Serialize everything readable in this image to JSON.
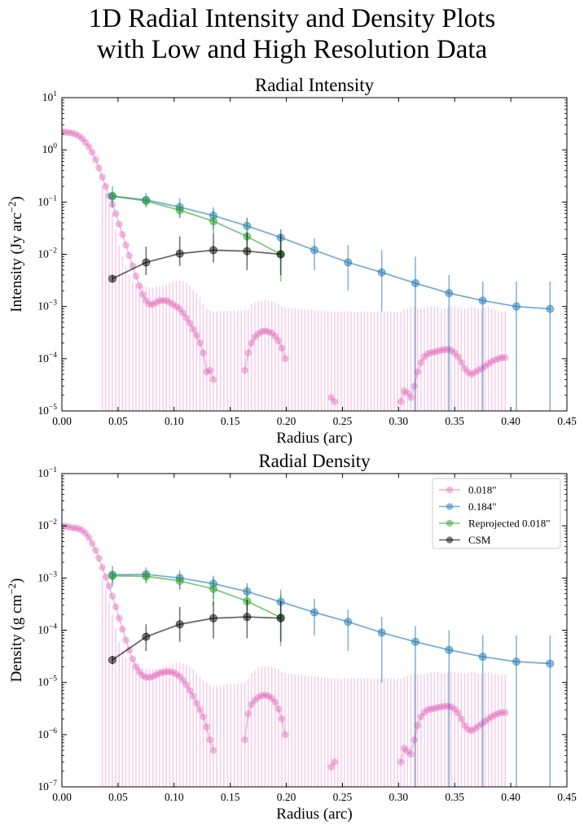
{
  "figure": {
    "title_line1": "1D Radial Intensity and Density Plots",
    "title_line2": "with Low and High Resolution Data"
  },
  "chart_data": [
    {
      "type": "line",
      "title": "Radial Intensity",
      "xlabel": "Radius (arc)",
      "ylabel": "Intensity (Jy arc",
      "ylabel_sup": "−2",
      "ylabel_end": ")",
      "xlim": [
        0,
        0.45
      ],
      "ylim": [
        1e-05,
        10
      ],
      "yscale": "log",
      "xticks": [
        "0.00",
        "0.05",
        "0.10",
        "0.15",
        "0.20",
        "0.25",
        "0.30",
        "0.35",
        "0.40",
        "0.45"
      ],
      "yticks_exp": [
        "−5",
        "−4",
        "−3",
        "−2",
        "−1",
        "0",
        "1"
      ],
      "legend": false,
      "series": [
        {
          "name": "0.018\"",
          "color": "#e377c2",
          "x": [
            0.0,
            0.003,
            0.006,
            0.009,
            0.012,
            0.015,
            0.018,
            0.021,
            0.024,
            0.027,
            0.03,
            0.033,
            0.036,
            0.039,
            0.042,
            0.045,
            0.048,
            0.051,
            0.054,
            0.057,
            0.06,
            0.063,
            0.066,
            0.069,
            0.072,
            0.075,
            0.078,
            0.081,
            0.084,
            0.087,
            0.09,
            0.093,
            0.096,
            0.099,
            0.102,
            0.105,
            0.108,
            0.111,
            0.114,
            0.117,
            0.12,
            0.123,
            0.126,
            0.129,
            0.132,
            0.135,
            0.163,
            0.166,
            0.169,
            0.172,
            0.175,
            0.178,
            0.181,
            0.184,
            0.187,
            0.19,
            0.193,
            0.196,
            0.199,
            0.24,
            0.243,
            0.302,
            0.305,
            0.308,
            0.311,
            0.314,
            0.317,
            0.32,
            0.323,
            0.326,
            0.329,
            0.332,
            0.335,
            0.338,
            0.341,
            0.344,
            0.347,
            0.35,
            0.353,
            0.356,
            0.359,
            0.362,
            0.365,
            0.368,
            0.371,
            0.374,
            0.377,
            0.38,
            0.383,
            0.386,
            0.389,
            0.392,
            0.395
          ],
          "y": [
            2.2,
            2.2,
            2.15,
            2.1,
            2.0,
            1.85,
            1.65,
            1.4,
            1.15,
            0.9,
            0.65,
            0.45,
            0.3,
            0.2,
            0.13,
            0.09,
            0.06,
            0.038,
            0.024,
            0.015,
            0.0095,
            0.006,
            0.0038,
            0.0025,
            0.0017,
            0.0013,
            0.0011,
            0.0011,
            0.0012,
            0.0013,
            0.0013,
            0.0013,
            0.0012,
            0.0011,
            0.001,
            0.0009,
            0.00075,
            0.0006,
            0.00048,
            0.00037,
            0.00028,
            0.0002,
            0.00013,
            5.6e-05,
            6e-05,
            4e-05,
            6e-05,
            0.00013,
            0.0002,
            0.00026,
            0.0003,
            0.00033,
            0.00034,
            0.00033,
            0.00031,
            0.00027,
            0.00022,
            0.00016,
            0.0001,
            1.8e-05,
            1.5e-05,
            1.5e-05,
            2.4e-05,
            2.2e-05,
            1.8e-05,
            3e-05,
            5.6e-05,
            8.5e-05,
            0.00011,
            0.000125,
            0.00013,
            0.000135,
            0.00014,
            0.000145,
            0.00015,
            0.00015,
            0.000145,
            0.00013,
            0.00011,
            8.5e-05,
            6.5e-05,
            5.5e-05,
            5e-05,
            5.5e-05,
            6e-05,
            6.5e-05,
            7.2e-05,
            8e-05,
            8.8e-05,
            9.5e-05,
            0.0001,
            0.000105,
            0.000105
          ],
          "err_floor": 1e-05,
          "err_top": [
            0.9,
            0.9,
            0.9,
            0.85,
            0.8,
            0.75,
            0.7,
            0.6,
            0.55,
            0.5,
            0.4,
            0.3,
            0.2,
            0.15,
            0.09,
            0.06,
            0.03,
            0.015,
            0.009,
            0.006,
            0.004,
            0.003,
            0.0028,
            0.0026,
            0.0025,
            0.0024,
            0.0023,
            0.0023,
            0.0024,
            0.0025,
            0.0025,
            0.0026,
            0.0028,
            0.003,
            0.0031,
            0.0031,
            0.003,
            0.0028,
            0.0025,
            0.0021,
            0.0018,
            0.0015,
            0.0011,
            0.0009,
            0.00085,
            0.0008,
            0.00085,
            0.0009,
            0.0011,
            0.0012,
            0.00125,
            0.0013,
            0.00135,
            0.0013,
            0.00125,
            0.0012,
            0.0011,
            0.001,
            0.00095,
            0.0008,
            0.0008,
            0.0008,
            0.0009,
            0.0009,
            0.00095,
            0.001,
            0.0009,
            0.0009,
            0.00095,
            0.001,
            0.001,
            0.001,
            0.001,
            0.0009,
            0.0009,
            0.00095,
            0.001,
            0.001,
            0.00095,
            0.0009,
            0.0009,
            0.00095,
            0.001,
            0.00095,
            0.0009,
            0.0009,
            0.00095,
            0.001,
            0.0009,
            0.00085,
            0.0008,
            0.0008,
            0.0008
          ]
        },
        {
          "name": "0.184\"",
          "color": "#1f77b4",
          "x": [
            0.045,
            0.075,
            0.105,
            0.135,
            0.165,
            0.195,
            0.225,
            0.255,
            0.285,
            0.315,
            0.345,
            0.375,
            0.405,
            0.435
          ],
          "y": [
            0.13,
            0.11,
            0.08,
            0.055,
            0.035,
            0.021,
            0.012,
            0.007,
            0.0045,
            0.0028,
            0.0018,
            0.0013,
            0.001,
            0.0009
          ],
          "err_lo": [
            0.08,
            0.08,
            0.05,
            0.03,
            0.018,
            0.008,
            0.005,
            0.002,
            0.0008,
            1e-05,
            1e-05,
            1e-05,
            1e-05,
            1e-05
          ],
          "err_hi": [
            0.2,
            0.15,
            0.12,
            0.08,
            0.05,
            0.03,
            0.02,
            0.015,
            0.012,
            0.009,
            0.004,
            0.003,
            0.003,
            0.003
          ]
        },
        {
          "name": "Reprojected 0.018\"",
          "color": "#2ca02c",
          "x": [
            0.045,
            0.075,
            0.105,
            0.135,
            0.165,
            0.195
          ],
          "y": [
            0.13,
            0.105,
            0.07,
            0.043,
            0.022,
            0.01
          ],
          "err_lo": [
            0.1,
            0.08,
            0.05,
            0.025,
            0.009,
            0.003
          ],
          "err_hi": [
            0.16,
            0.13,
            0.1,
            0.07,
            0.05,
            0.03
          ]
        },
        {
          "name": "CSM",
          "color": "#000000",
          "x": [
            0.045,
            0.075,
            0.105,
            0.135,
            0.165,
            0.195
          ],
          "y": [
            0.0034,
            0.007,
            0.0103,
            0.012,
            0.0115,
            0.01
          ],
          "err_lo": [
            0.003,
            0.004,
            0.006,
            0.007,
            0.005,
            0.004
          ],
          "err_hi": [
            0.004,
            0.014,
            0.022,
            0.025,
            0.026,
            0.024
          ]
        }
      ]
    },
    {
      "type": "line",
      "title": "Radial Density",
      "xlabel": "Radius (arc)",
      "ylabel": "Density (g cm",
      "ylabel_sup": "−2",
      "ylabel_end": ")",
      "xlim": [
        0,
        0.45
      ],
      "ylim": [
        1e-07,
        0.1
      ],
      "yscale": "log",
      "xticks": [
        "0.00",
        "0.05",
        "0.10",
        "0.15",
        "0.20",
        "0.25",
        "0.30",
        "0.35",
        "0.40",
        "0.45"
      ],
      "yticks_exp": [
        "−7",
        "−6",
        "−5",
        "−4",
        "−3",
        "−2",
        "−1"
      ],
      "legend": true,
      "legend_position": "upper right",
      "legend_labels": [
        "0.018\"",
        "0.184\"",
        "Reprojected 0.018\"",
        "CSM"
      ],
      "series": [
        {
          "name": "0.018\"",
          "color": "#e377c2",
          "x": [
            0.0,
            0.003,
            0.006,
            0.009,
            0.012,
            0.015,
            0.018,
            0.021,
            0.024,
            0.027,
            0.03,
            0.033,
            0.036,
            0.039,
            0.042,
            0.045,
            0.048,
            0.051,
            0.054,
            0.057,
            0.06,
            0.063,
            0.066,
            0.069,
            0.072,
            0.075,
            0.078,
            0.081,
            0.084,
            0.087,
            0.09,
            0.093,
            0.096,
            0.099,
            0.102,
            0.105,
            0.108,
            0.111,
            0.114,
            0.117,
            0.12,
            0.123,
            0.126,
            0.129,
            0.132,
            0.135,
            0.163,
            0.166,
            0.169,
            0.172,
            0.175,
            0.178,
            0.181,
            0.184,
            0.187,
            0.19,
            0.193,
            0.196,
            0.199,
            0.24,
            0.243,
            0.302,
            0.305,
            0.308,
            0.311,
            0.314,
            0.317,
            0.32,
            0.323,
            0.326,
            0.329,
            0.332,
            0.335,
            0.338,
            0.341,
            0.344,
            0.347,
            0.35,
            0.353,
            0.356,
            0.359,
            0.362,
            0.365,
            0.368,
            0.371,
            0.374,
            0.377,
            0.38,
            0.383,
            0.386,
            0.389,
            0.392,
            0.395
          ],
          "y": [
            0.0098,
            0.0098,
            0.0095,
            0.0092,
            0.009,
            0.0088,
            0.0082,
            0.0072,
            0.006,
            0.0046,
            0.0034,
            0.0024,
            0.0016,
            0.00105,
            0.0007,
            0.00045,
            0.00028,
            0.00017,
            0.000105,
            6.5e-05,
            4.2e-05,
            2.8e-05,
            2e-05,
            1.6e-05,
            1.35e-05,
            1.25e-05,
            1.25e-05,
            1.3e-05,
            1.4e-05,
            1.5e-05,
            1.55e-05,
            1.6e-05,
            1.6e-05,
            1.55e-05,
            1.45e-05,
            1.3e-05,
            1.1e-05,
            9e-06,
            7e-06,
            5.5e-06,
            4e-06,
            3e-06,
            2.2e-06,
            1.4e-06,
            8e-07,
            5e-07,
            8e-07,
            2.5e-06,
            3.8e-06,
            4.6e-06,
            5.2e-06,
            5.6e-06,
            5.7e-06,
            5.5e-06,
            5e-06,
            4.2e-06,
            3.1e-06,
            2e-06,
            1e-06,
            2.4e-07,
            3e-07,
            3e-07,
            5.5e-07,
            4.8e-07,
            4.2e-07,
            8e-07,
            1.5e-06,
            2.2e-06,
            2.7e-06,
            3e-06,
            3.1e-06,
            3.2e-06,
            3.3e-06,
            3.4e-06,
            3.5e-06,
            3.5e-06,
            3.4e-06,
            3.1e-06,
            2.6e-06,
            2e-06,
            1.5e-06,
            1.25e-06,
            1.2e-06,
            1.3e-06,
            1.45e-06,
            1.6e-06,
            1.8e-06,
            2e-06,
            2.2e-06,
            2.4e-06,
            2.55e-06,
            2.65e-06,
            2.65e-06
          ],
          "err_floor": 1e-07,
          "err_top": [
            0.004,
            0.004,
            0.0038,
            0.0036,
            0.0034,
            0.0032,
            0.003,
            0.0028,
            0.0025,
            0.002,
            0.0016,
            0.0012,
            0.0009,
            0.0006,
            0.00035,
            0.0002,
            0.00011,
            6e-05,
            4e-05,
            3e-05,
            2.5e-05,
            2.2e-05,
            2.1e-05,
            2e-05,
            1.9e-05,
            1.8e-05,
            1.8e-05,
            1.8e-05,
            1.85e-05,
            1.9e-05,
            2e-05,
            2.1e-05,
            2.2e-05,
            2.3e-05,
            2.4e-05,
            2.4e-05,
            2.3e-05,
            2.2e-05,
            2e-05,
            1.8e-05,
            1.5e-05,
            1.3e-05,
            1.1e-05,
            1e-05,
            9e-06,
            8.5e-06,
            1e-05,
            1.2e-05,
            1.5e-05,
            1.7e-05,
            1.9e-05,
            2e-05,
            2.05e-05,
            2e-05,
            1.95e-05,
            1.9e-05,
            1.8e-05,
            1.6e-05,
            1.5e-05,
            1.2e-05,
            1.2e-05,
            1.2e-05,
            1.3e-05,
            1.35e-05,
            1.4e-05,
            1.5e-05,
            1.4e-05,
            1.4e-05,
            1.45e-05,
            1.5e-05,
            1.55e-05,
            1.55e-05,
            1.6e-05,
            1.5e-05,
            1.5e-05,
            1.55e-05,
            1.6e-05,
            1.6e-05,
            1.55e-05,
            1.5e-05,
            1.5e-05,
            1.55e-05,
            1.6e-05,
            1.55e-05,
            1.5e-05,
            1.5e-05,
            1.55e-05,
            1.6e-05,
            1.5e-05,
            1.45e-05,
            1.4e-05,
            1.4e-05,
            1.4e-05
          ]
        },
        {
          "name": "0.184\"",
          "color": "#1f77b4",
          "x": [
            0.045,
            0.075,
            0.105,
            0.135,
            0.165,
            0.195,
            0.225,
            0.255,
            0.285,
            0.315,
            0.345,
            0.375,
            0.405,
            0.435
          ],
          "y": [
            0.00115,
            0.00118,
            0.001,
            0.00078,
            0.00055,
            0.00035,
            0.00022,
            0.000145,
            9e-05,
            6e-05,
            4.2e-05,
            3.1e-05,
            2.5e-05,
            2.3e-05
          ],
          "err_lo": [
            0.0007,
            0.0008,
            0.0006,
            0.0004,
            0.00025,
            0.00015,
            8e-05,
            4e-05,
            1e-05,
            1e-07,
            1e-07,
            1e-07,
            1e-07,
            1e-07
          ],
          "err_hi": [
            0.0017,
            0.0016,
            0.0014,
            0.0011,
            0.0008,
            0.0006,
            0.0004,
            0.00025,
            0.00018,
            0.00012,
            0.0001,
            8e-05,
            8e-05,
            8e-05
          ]
        },
        {
          "name": "Reprojected 0.018\"",
          "color": "#2ca02c",
          "x": [
            0.045,
            0.075,
            0.105,
            0.135,
            0.165,
            0.195
          ],
          "y": [
            0.0011,
            0.00108,
            0.00088,
            0.00062,
            0.00036,
            0.000175
          ],
          "err_lo": [
            0.0008,
            0.0008,
            0.0006,
            0.0003,
            0.00015,
            5e-05
          ],
          "err_hi": [
            0.0014,
            0.0014,
            0.0012,
            0.001,
            0.0007,
            0.0005
          ]
        },
        {
          "name": "CSM",
          "color": "#000000",
          "x": [
            0.045,
            0.075,
            0.105,
            0.135,
            0.165,
            0.195
          ],
          "y": [
            2.7e-05,
            7.5e-05,
            0.00013,
            0.00017,
            0.00018,
            0.00017
          ],
          "err_lo": [
            2.2e-05,
            4e-05,
            6e-05,
            7e-05,
            7e-05,
            6e-05
          ],
          "err_hi": [
            3.2e-05,
            0.00013,
            0.00028,
            0.00035,
            0.00038,
            0.00036
          ]
        }
      ]
    }
  ]
}
